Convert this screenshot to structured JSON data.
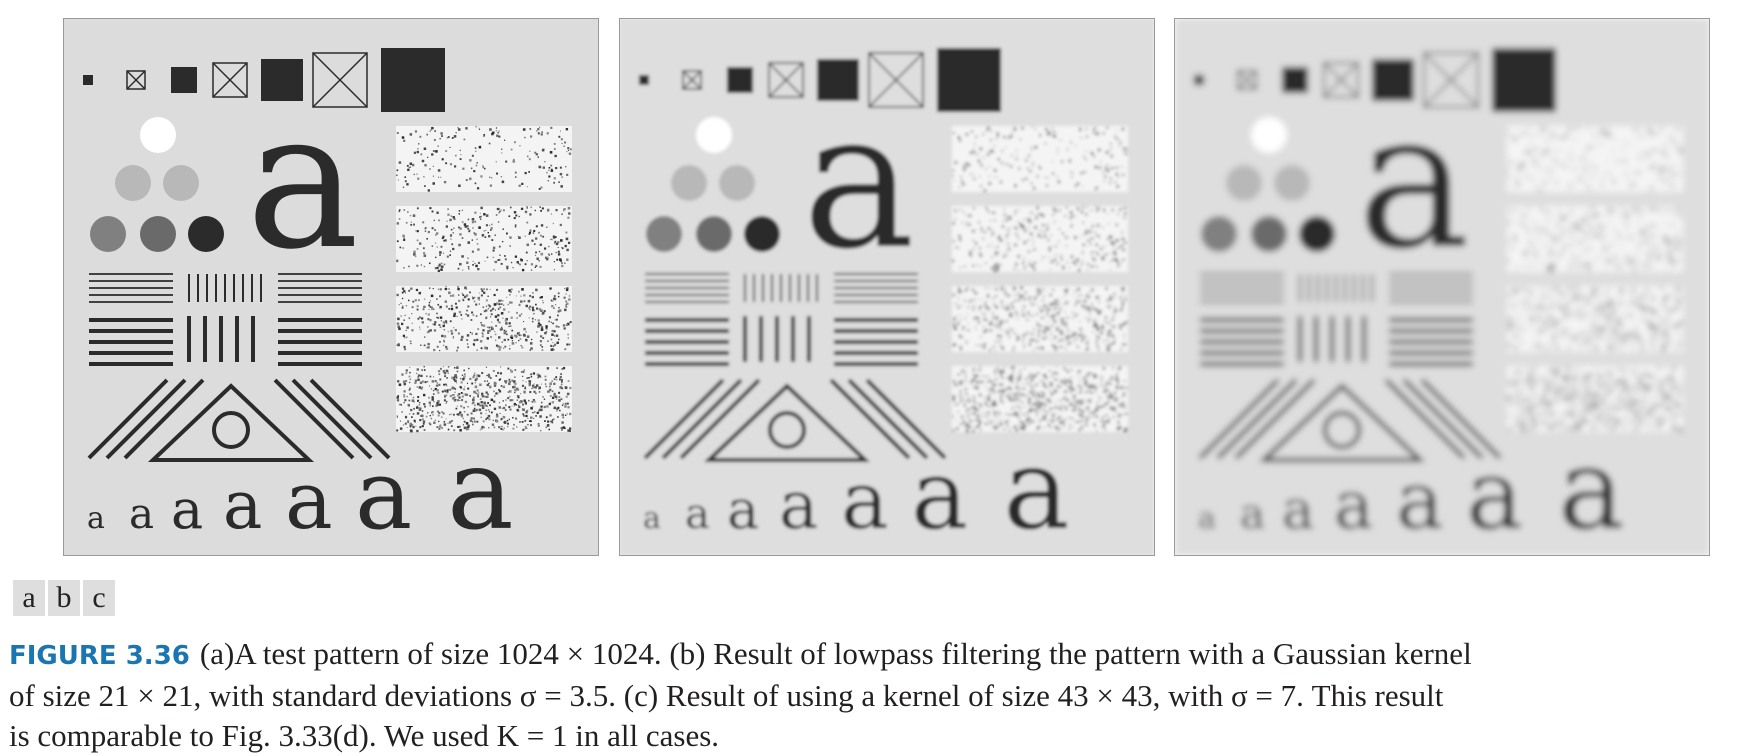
{
  "panels": [
    {
      "id": "a",
      "blur": 0,
      "background": "#dcdcdc"
    },
    {
      "id": "b",
      "blur": 1.6,
      "background": "#dedede"
    },
    {
      "id": "c",
      "blur": 3.2,
      "background": "#dedede"
    }
  ],
  "test_pattern": {
    "big_letter": "a",
    "row_letter": "a"
  },
  "subfigure_labels": [
    "a",
    "b",
    "c"
  ],
  "caption": {
    "figure_number": "FIGURE 3.36",
    "line1": "(a)A test pattern of size 1024 × 1024. (b) Result of lowpass filtering the pattern with a Gaussian kernel",
    "line2": "of size 21 × 21, with standard deviations σ = 3.5. (c) Result of using a kernel of size 43 × 43, with σ = 7. This result",
    "line3": "is comparable to Fig. 3.33(d). We used K = 1 in all cases."
  }
}
